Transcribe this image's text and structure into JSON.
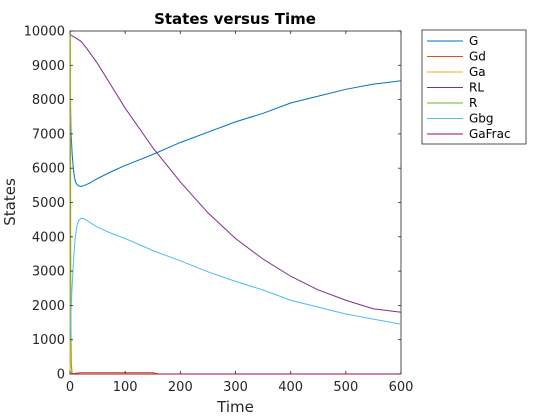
{
  "chart_data": {
    "type": "line",
    "title": "States versus Time",
    "xlabel": "Time",
    "ylabel": "States",
    "xlim": [
      0,
      600
    ],
    "ylim": [
      0,
      10000
    ],
    "xticks": [
      "0",
      "100",
      "200",
      "300",
      "400",
      "500",
      "600"
    ],
    "yticks": [
      "0",
      "1000",
      "2000",
      "3000",
      "4000",
      "5000",
      "6000",
      "7000",
      "8000",
      "9000",
      "10000"
    ],
    "grid": false,
    "legend_position": "outside-top-right",
    "series": [
      {
        "name": "G",
        "color": "#0072BD",
        "points": [
          [
            0,
            8900
          ],
          [
            1,
            7800
          ],
          [
            2,
            7000
          ],
          [
            4,
            6400
          ],
          [
            6,
            6000
          ],
          [
            8,
            5750
          ],
          [
            10,
            5600
          ],
          [
            13,
            5520
          ],
          [
            16,
            5480
          ],
          [
            20,
            5470
          ],
          [
            25,
            5490
          ],
          [
            35,
            5560
          ],
          [
            50,
            5700
          ],
          [
            75,
            5900
          ],
          [
            100,
            6080
          ],
          [
            150,
            6400
          ],
          [
            200,
            6750
          ],
          [
            250,
            7050
          ],
          [
            300,
            7350
          ],
          [
            350,
            7600
          ],
          [
            400,
            7900
          ],
          [
            450,
            8100
          ],
          [
            500,
            8300
          ],
          [
            550,
            8450
          ],
          [
            600,
            8550
          ]
        ]
      },
      {
        "name": "Gd",
        "color": "#D95319",
        "points": [
          [
            0,
            0
          ],
          [
            20,
            40
          ],
          [
            60,
            40
          ],
          [
            100,
            40
          ],
          [
            150,
            40
          ],
          [
            160,
            0
          ],
          [
            600,
            0
          ]
        ]
      },
      {
        "name": "Ga",
        "color": "#EDB120",
        "points": [
          [
            0,
            0
          ],
          [
            0.5,
            9800
          ],
          [
            1,
            9900
          ],
          [
            1.5,
            300
          ],
          [
            3,
            0
          ],
          [
            600,
            0
          ]
        ]
      },
      {
        "name": "RL",
        "color": "#7E2F8E",
        "points": [
          [
            0,
            9900
          ],
          [
            5,
            9850
          ],
          [
            10,
            9800
          ],
          [
            20,
            9700
          ],
          [
            30,
            9500
          ],
          [
            50,
            9050
          ],
          [
            75,
            8400
          ],
          [
            100,
            7750
          ],
          [
            150,
            6600
          ],
          [
            200,
            5600
          ],
          [
            250,
            4700
          ],
          [
            300,
            3950
          ],
          [
            350,
            3350
          ],
          [
            400,
            2850
          ],
          [
            450,
            2450
          ],
          [
            500,
            2150
          ],
          [
            550,
            1900
          ],
          [
            600,
            1800
          ]
        ]
      },
      {
        "name": "R",
        "color": "#77AC30",
        "points": [
          [
            0,
            10000
          ],
          [
            0.5,
            8000
          ],
          [
            1,
            4000
          ],
          [
            1.5,
            1500
          ],
          [
            2.5,
            300
          ],
          [
            4,
            0
          ],
          [
            600,
            0
          ]
        ]
      },
      {
        "name": "Gbg",
        "color": "#4DBEEE",
        "points": [
          [
            0,
            1000
          ],
          [
            2,
            1900
          ],
          [
            4,
            2600
          ],
          [
            6,
            3200
          ],
          [
            8,
            3700
          ],
          [
            10,
            4050
          ],
          [
            13,
            4350
          ],
          [
            16,
            4480
          ],
          [
            20,
            4540
          ],
          [
            25,
            4530
          ],
          [
            35,
            4430
          ],
          [
            50,
            4280
          ],
          [
            75,
            4100
          ],
          [
            100,
            3950
          ],
          [
            150,
            3600
          ],
          [
            200,
            3300
          ],
          [
            250,
            2980
          ],
          [
            300,
            2700
          ],
          [
            350,
            2450
          ],
          [
            400,
            2150
          ],
          [
            450,
            1950
          ],
          [
            500,
            1750
          ],
          [
            550,
            1600
          ],
          [
            600,
            1450
          ]
        ]
      },
      {
        "name": "GaFrac",
        "color": "#A2142F",
        "points": [
          [
            0,
            0
          ],
          [
            600,
            0
          ]
        ]
      }
    ]
  }
}
